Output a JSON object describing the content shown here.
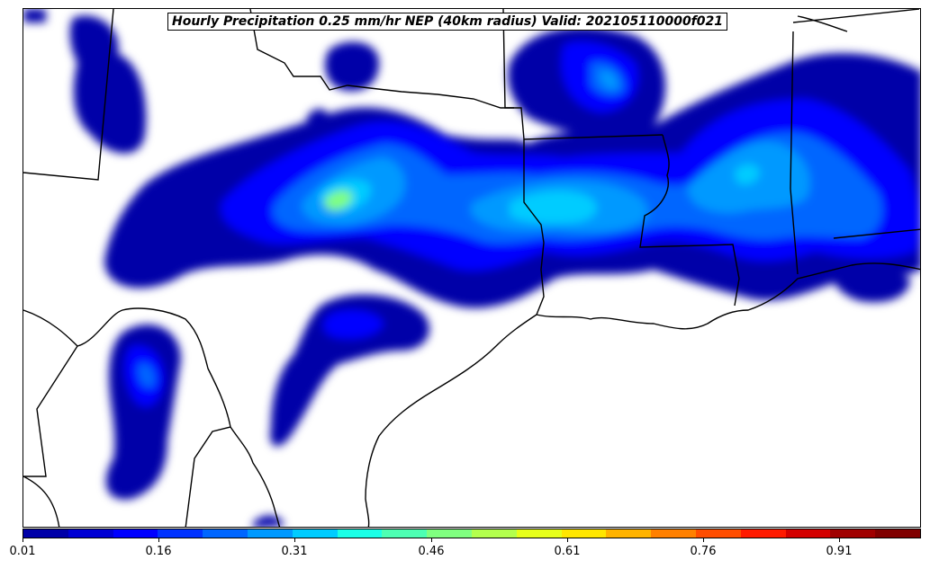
{
  "title": "Hourly Precipitation 0.25 mm/hr NEP (40km radius) Valid: 202105110000f021",
  "colorbar": {
    "min": 0.01,
    "max": 1.0,
    "tick_labels": [
      "0.01",
      "0.16",
      "0.31",
      "0.46",
      "0.61",
      "0.76",
      "0.91"
    ],
    "tick_values": [
      0.01,
      0.16,
      0.31,
      0.46,
      0.61,
      0.76,
      0.91
    ],
    "colors": [
      "#0000a8",
      "#0000d4",
      "#0000ff",
      "#0032ff",
      "#0066ff",
      "#0099ff",
      "#00ccff",
      "#1affe6",
      "#4dffb3",
      "#80ff80",
      "#b3ff4d",
      "#e6ff1a",
      "#ffe600",
      "#ffb300",
      "#ff8000",
      "#ff4d00",
      "#ff1a00",
      "#d40000",
      "#a00000",
      "#800000"
    ]
  },
  "colors": {
    "land_line": "#000000",
    "background": "#ffffff"
  }
}
